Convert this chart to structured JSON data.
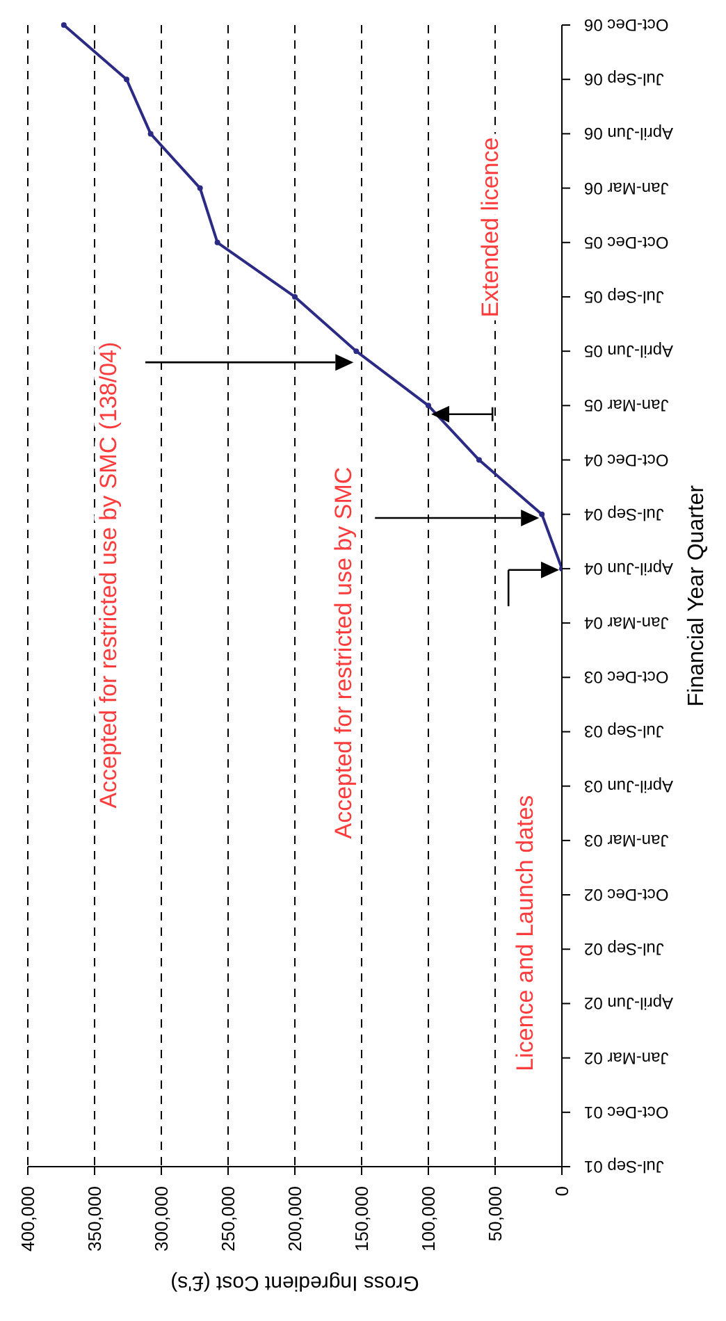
{
  "chart_data": {
    "type": "line",
    "orientation": "horizontal",
    "xlabel": "Gross Ingredient Cost (£'s)",
    "ylabel": "Financial Year Quarter",
    "categories": [
      "Oct-Dec 06",
      "Jul-Sep 06",
      "April-Jun 06",
      "Jan-Mar 06",
      "Oct-Dec 05",
      "Jul-Sep 05",
      "April-Jun 05",
      "Jan-Mar 05",
      "Oct-Dec 04",
      "Jul-Sep 04",
      "April-Jun 04",
      "Jan-Mar 04",
      "Oct-Dec 03",
      "Jul-Sep 03",
      "April-Jun 03",
      "Jan-Mar 03",
      "Oct-Dec 02",
      "Jul-Sep 02",
      "April-Jun 02",
      "Jan-Mar 02",
      "Oct-Dec 01",
      "Jul-Sep 01"
    ],
    "series": [
      {
        "color": "#2b2b85",
        "values": [
          373000,
          326000,
          308000,
          271000,
          258000,
          200000,
          154000,
          100000,
          62000,
          15000,
          0,
          null,
          null,
          null,
          null,
          null,
          null,
          null,
          null,
          null,
          null,
          null
        ]
      }
    ],
    "xlim": [
      400000,
      0
    ],
    "xticks": [
      {
        "value": 400000,
        "label": "400,000"
      },
      {
        "value": 350000,
        "label": "350,000"
      },
      {
        "value": 300000,
        "label": "300,000"
      },
      {
        "value": 250000,
        "label": "250,000"
      },
      {
        "value": 200000,
        "label": "200,000"
      },
      {
        "value": 150000,
        "label": "150,000"
      },
      {
        "value": 100000,
        "label": "100,000"
      },
      {
        "value": 50000,
        "label": "50,000"
      },
      0
    ],
    "grid": "x",
    "marker": "circle",
    "annotations": [
      "Licence and Launch dates",
      "Accepted for restricted use by SMC",
      "Accepted for restricted use by SMC (138/04)",
      "Extended licence"
    ]
  }
}
